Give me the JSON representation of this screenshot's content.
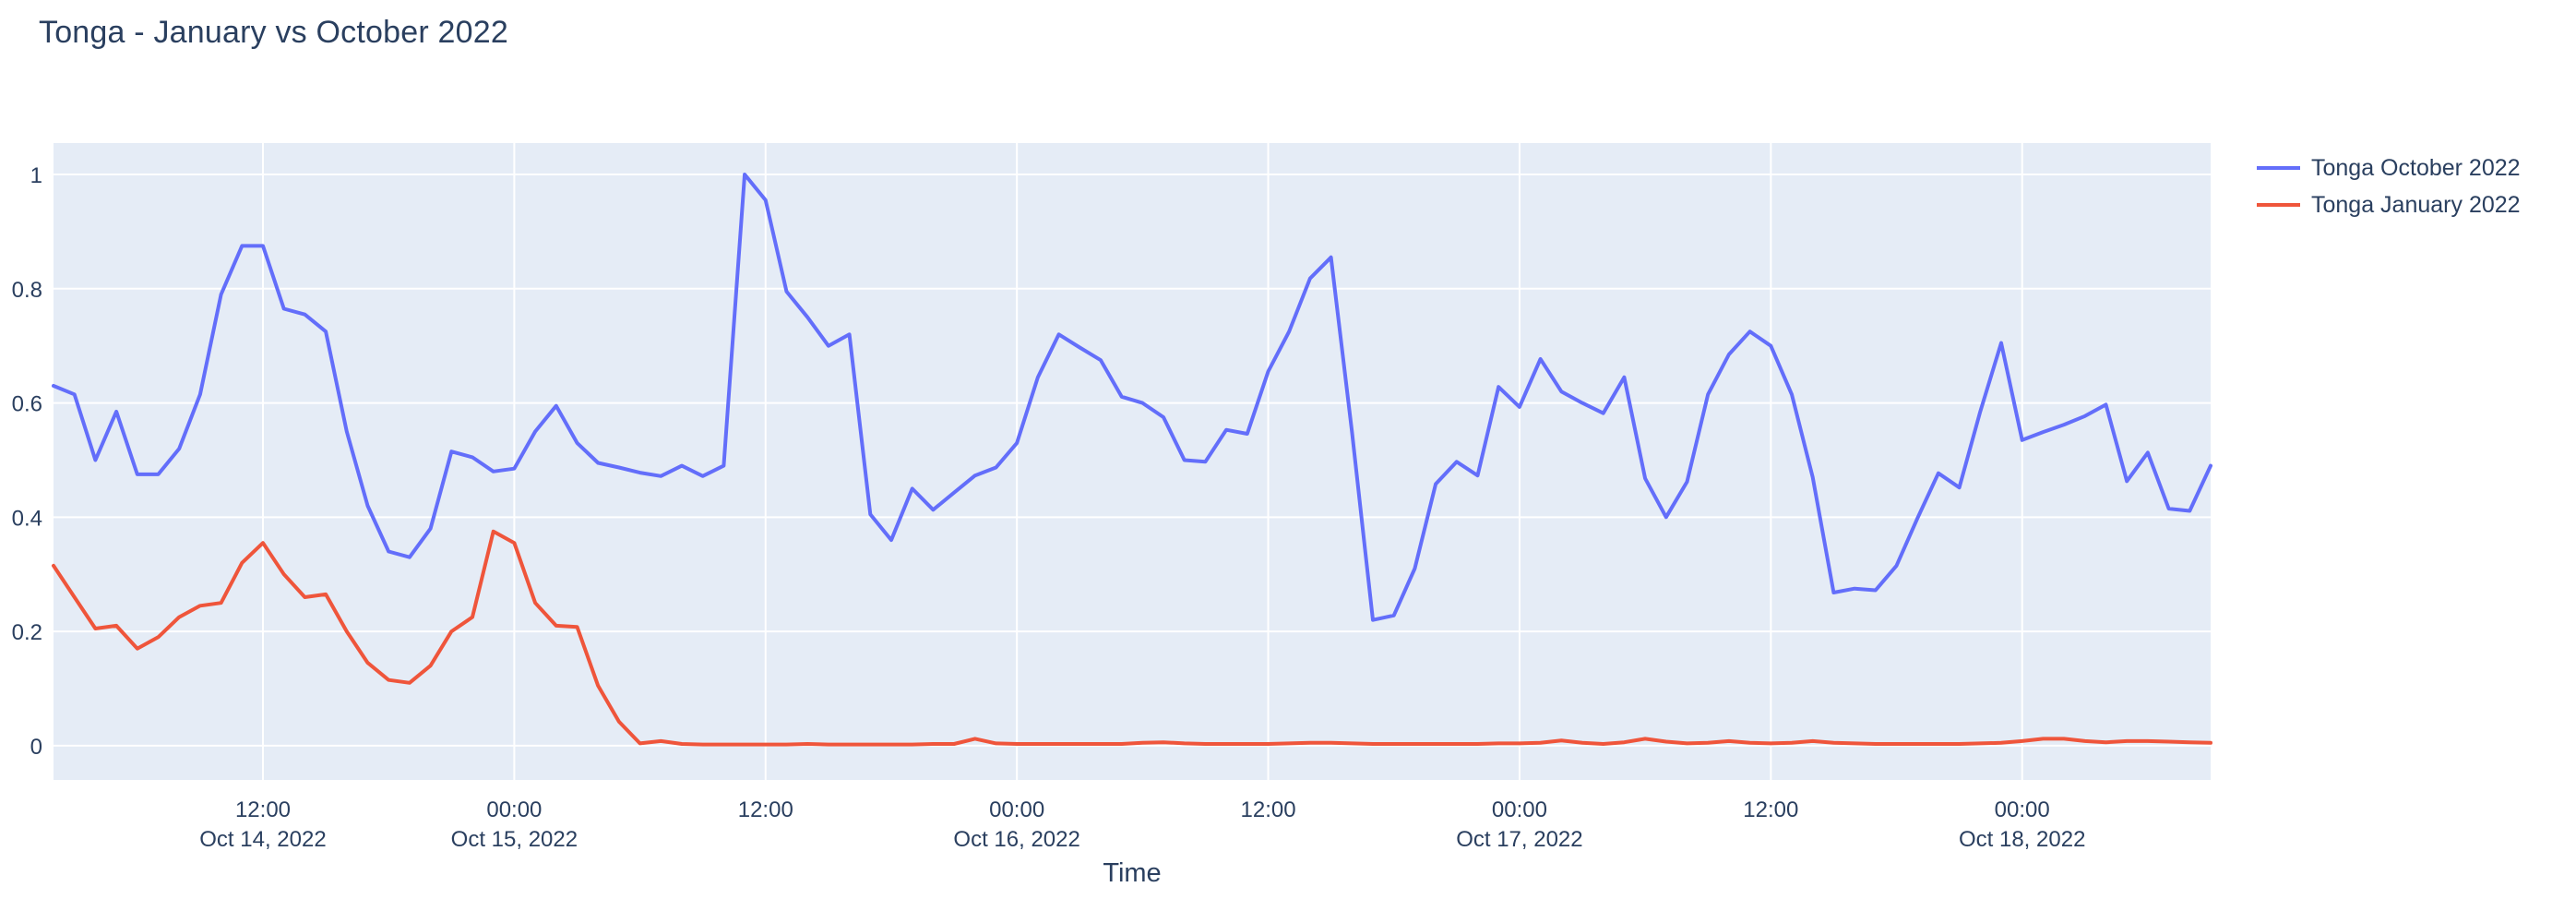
{
  "figure": {
    "title": "Tonga - January vs October 2022",
    "xaxis_title": "Time"
  },
  "colors": {
    "paper": "#ffffff",
    "plot_background": "#e5ecf6",
    "gridline": "#ffffff",
    "text": "#2a3f5f",
    "october_line": "#636efa",
    "january_line": "#ef553b"
  },
  "legend": {
    "items": [
      {
        "label": "Tonga October 2022",
        "color": "#636efa"
      },
      {
        "label": "Tonga January 2022",
        "color": "#ef553b"
      }
    ]
  },
  "chart_data": {
    "type": "line",
    "title": "Tonga - January vs October 2022",
    "xlabel": "Time",
    "ylabel": "",
    "grid": true,
    "legend_position": "top-right",
    "x_start": "2022-10-14 02:00",
    "x_step_hours": 1,
    "x_end": "2022-10-18 09:00",
    "n_points": 104,
    "y_range": [
      -0.06,
      1.055
    ],
    "y_ticks": {
      "values": [
        0,
        0.2,
        0.4,
        0.6,
        0.8,
        1
      ],
      "labels": [
        "0",
        "0.2",
        "0.4",
        "0.6",
        "0.8",
        "1"
      ]
    },
    "x_ticks": [
      {
        "index": 10,
        "time": "12:00",
        "date": "Oct 14, 2022"
      },
      {
        "index": 22,
        "time": "00:00",
        "date": "Oct 15, 2022"
      },
      {
        "index": 34,
        "time": "12:00",
        "date": ""
      },
      {
        "index": 46,
        "time": "00:00",
        "date": "Oct 16, 2022"
      },
      {
        "index": 58,
        "time": "12:00",
        "date": ""
      },
      {
        "index": 70,
        "time": "00:00",
        "date": "Oct 17, 2022"
      },
      {
        "index": 82,
        "time": "12:00",
        "date": ""
      },
      {
        "index": 94,
        "time": "00:00",
        "date": "Oct 18, 2022"
      }
    ],
    "series": [
      {
        "name": "Tonga October 2022",
        "color": "#636efa",
        "values": [
          0.63,
          0.615,
          0.5,
          0.585,
          0.475,
          0.475,
          0.52,
          0.615,
          0.79,
          0.875,
          0.875,
          0.765,
          0.755,
          0.725,
          0.55,
          0.42,
          0.34,
          0.33,
          0.38,
          0.515,
          0.505,
          0.48,
          0.485,
          0.55,
          0.595,
          0.53,
          0.495,
          0.487,
          0.478,
          0.472,
          0.49,
          0.472,
          0.49,
          1.0,
          0.955,
          0.795,
          0.75,
          0.7,
          0.72,
          0.405,
          0.36,
          0.45,
          0.413,
          0.443,
          0.473,
          0.487,
          0.53,
          0.645,
          0.72,
          0.697,
          0.675,
          0.611,
          0.6,
          0.575,
          0.5,
          0.497,
          0.553,
          0.546,
          0.655,
          0.725,
          0.818,
          0.855,
          0.55,
          0.22,
          0.228,
          0.31,
          0.458,
          0.497,
          0.473,
          0.628,
          0.593,
          0.677,
          0.62,
          0.6,
          0.582,
          0.645,
          0.468,
          0.4,
          0.462,
          0.615,
          0.685,
          0.725,
          0.7,
          0.615,
          0.47,
          0.268,
          0.275,
          0.272,
          0.315,
          0.398,
          0.477,
          0.452,
          0.585,
          0.705,
          0.535,
          0.549,
          0.562,
          0.577,
          0.597,
          0.463,
          0.513,
          0.415,
          0.411,
          0.49
        ]
      },
      {
        "name": "Tonga January 2022",
        "color": "#ef553b",
        "values": [
          0.315,
          0.26,
          0.205,
          0.21,
          0.17,
          0.19,
          0.225,
          0.245,
          0.25,
          0.32,
          0.355,
          0.3,
          0.26,
          0.265,
          0.2,
          0.145,
          0.115,
          0.11,
          0.14,
          0.2,
          0.225,
          0.375,
          0.355,
          0.25,
          0.21,
          0.208,
          0.105,
          0.042,
          0.004,
          0.008,
          0.003,
          0.002,
          0.002,
          0.002,
          0.002,
          0.002,
          0.003,
          0.002,
          0.002,
          0.002,
          0.002,
          0.002,
          0.003,
          0.003,
          0.012,
          0.004,
          0.003,
          0.003,
          0.003,
          0.003,
          0.003,
          0.003,
          0.005,
          0.006,
          0.004,
          0.003,
          0.003,
          0.003,
          0.003,
          0.004,
          0.005,
          0.005,
          0.004,
          0.003,
          0.003,
          0.003,
          0.003,
          0.003,
          0.003,
          0.004,
          0.004,
          0.005,
          0.009,
          0.005,
          0.003,
          0.006,
          0.012,
          0.007,
          0.004,
          0.005,
          0.008,
          0.005,
          0.004,
          0.005,
          0.008,
          0.005,
          0.004,
          0.003,
          0.003,
          0.003,
          0.003,
          0.003,
          0.004,
          0.005,
          0.008,
          0.012,
          0.012,
          0.008,
          0.006,
          0.008,
          0.008,
          0.007,
          0.006,
          0.005
        ]
      }
    ]
  }
}
